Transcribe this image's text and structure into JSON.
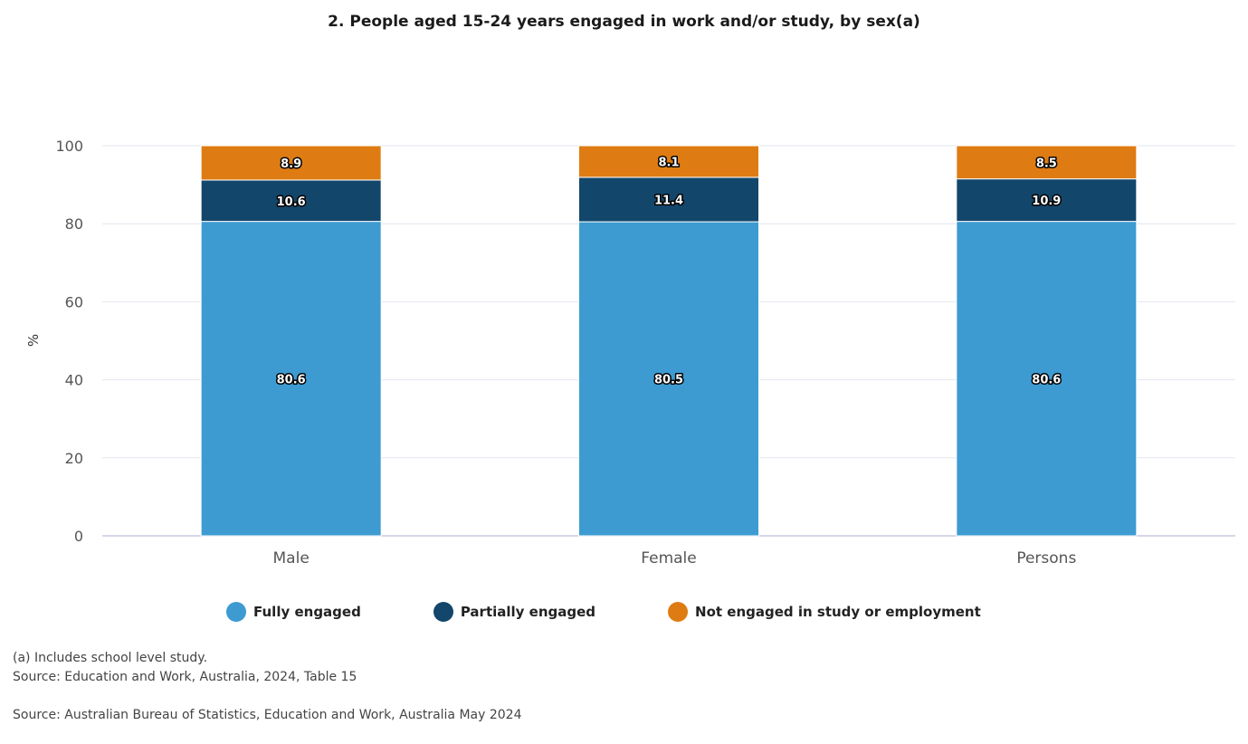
{
  "chart_data": {
    "type": "bar",
    "stacked": true,
    "title": "2. People aged 15-24 years engaged in work and/or study, by sex(a)",
    "xlabel": "",
    "ylabel": "%",
    "ylim": [
      0,
      100
    ],
    "yticks": [
      0,
      20,
      40,
      60,
      80,
      100
    ],
    "grid": true,
    "legend_position": "bottom",
    "categories": [
      "Male",
      "Female",
      "Persons"
    ],
    "series": [
      {
        "name": "Fully engaged",
        "values": [
          80.6,
          80.5,
          80.6
        ],
        "color": "#3d9bd1"
      },
      {
        "name": "Partially engaged",
        "values": [
          10.6,
          11.4,
          10.9
        ],
        "color": "#13466b"
      },
      {
        "name": "Not engaged in study or employment",
        "values": [
          8.9,
          8.1,
          8.5
        ],
        "color": "#de7c13"
      }
    ]
  },
  "notes": {
    "footnote": "(a) Includes school level study.",
    "source_table": "Source: Education and Work, Australia, 2024, Table 15",
    "source": "Source: Australian Bureau of Statistics, Education and Work, Australia May 2024"
  }
}
